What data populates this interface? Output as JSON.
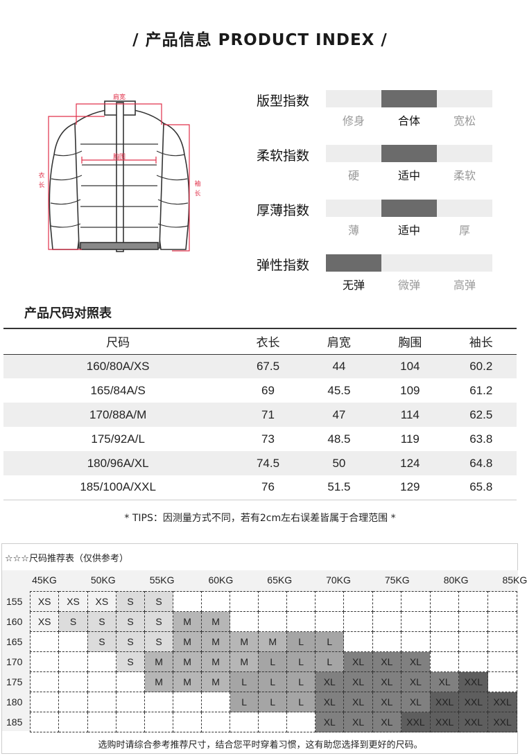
{
  "title": "/  产品信息 PRODUCT INDEX  /",
  "diagram": {
    "shoulder": "肩宽",
    "chest": "胸围",
    "length": [
      "衣",
      "长"
    ],
    "sleeve": [
      "袖",
      "长"
    ]
  },
  "indices": [
    {
      "label": "版型指数",
      "options": [
        "修身",
        "合体",
        "宽松"
      ],
      "selected": 1
    },
    {
      "label": "柔软指数",
      "options": [
        "硬",
        "适中",
        "柔软"
      ],
      "selected": 1
    },
    {
      "label": "厚薄指数",
      "options": [
        "薄",
        "适中",
        "厚"
      ],
      "selected": 1
    },
    {
      "label": "弹性指数",
      "options": [
        "无弹",
        "微弹",
        "高弹"
      ],
      "selected": 0
    }
  ],
  "size_table": {
    "title": "产品尺码对照表",
    "headers": [
      "尺码",
      "衣长",
      "肩宽",
      "胸围",
      "袖长"
    ],
    "rows": [
      [
        "160/80A/XS",
        "67.5",
        "44",
        "104",
        "60.2"
      ],
      [
        "165/84A/S",
        "69",
        "45.5",
        "109",
        "61.2"
      ],
      [
        "170/88A/M",
        "71",
        "47",
        "114",
        "62.5"
      ],
      [
        "175/92A/L",
        "73",
        "48.5",
        "119",
        "63.8"
      ],
      [
        "180/96A/XL",
        "74.5",
        "50",
        "124",
        "64.8"
      ],
      [
        "185/100A/XXL",
        "76",
        "51.5",
        "129",
        "65.8"
      ]
    ]
  },
  "tips": "* TIPS：因测量方式不同，若有2cm左右误差皆属于合理范围 *",
  "recommend": {
    "title": "☆☆☆尺码推荐表（仅供参考）",
    "weights": [
      "45KG",
      "50KG",
      "55KG",
      "60KG",
      "65KG",
      "70KG",
      "75KG",
      "80KG",
      "85KG"
    ],
    "colors": {
      "XS": "#f3f3f3",
      "S": "#dcdcdc",
      "M": "#b6b6b6",
      "L": "#a5a5a5",
      "XL": "#808080",
      "XXL": "#5e5e5e"
    },
    "rows": [
      {
        "height": "155",
        "cells": [
          "XS",
          "XS",
          "XS",
          "S",
          "S",
          "",
          "",
          "",
          "",
          "",
          "",
          "",
          "",
          "",
          "",
          "",
          ""
        ]
      },
      {
        "height": "160",
        "cells": [
          "XS",
          "S",
          "S",
          "S",
          "S",
          "M",
          "M",
          "",
          "",
          "",
          "",
          "",
          "",
          "",
          "",
          "",
          ""
        ]
      },
      {
        "height": "165",
        "cells": [
          "",
          "",
          "S",
          "S",
          "S",
          "M",
          "M",
          "M",
          "M",
          "L",
          "L",
          "",
          "",
          "",
          "",
          "",
          ""
        ]
      },
      {
        "height": "170",
        "cells": [
          "",
          "",
          "",
          "S",
          "M",
          "M",
          "M",
          "M",
          "L",
          "L",
          "L",
          "XL",
          "XL",
          "XL",
          "",
          "",
          ""
        ]
      },
      {
        "height": "175",
        "cells": [
          "",
          "",
          "",
          "",
          "M",
          "M",
          "M",
          "L",
          "L",
          "L",
          "XL",
          "XL",
          "XL",
          "XL",
          "XL",
          "XXL",
          ""
        ]
      },
      {
        "height": "180",
        "cells": [
          "",
          "",
          "",
          "",
          "",
          "",
          "",
          "L",
          "L",
          "L",
          "XL",
          "XL",
          "XL",
          "XL",
          "XXL",
          "XXL",
          "XXL"
        ]
      },
      {
        "height": "185",
        "cells": [
          "",
          "",
          "",
          "",
          "",
          "",
          "",
          "",
          "",
          "",
          "XL",
          "XL",
          "XL",
          "XXL",
          "XXL",
          "XXL",
          "XXL"
        ]
      }
    ],
    "footer": "选购时请综合参考推荐尺寸，结合您平时穿着习惯，这有助您选择到更好的尺码。"
  }
}
